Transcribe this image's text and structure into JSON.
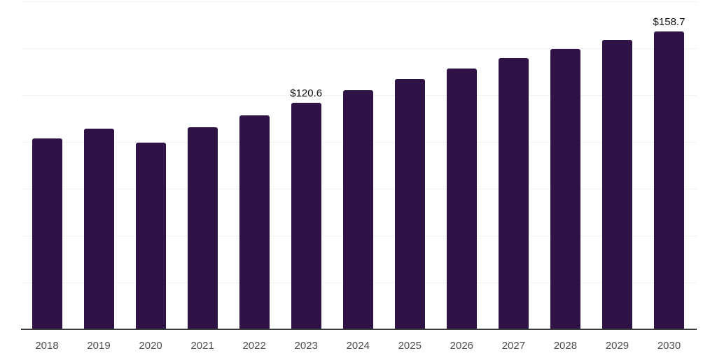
{
  "chart_data": {
    "type": "bar",
    "title": "",
    "xlabel": "",
    "ylabel": "",
    "categories": [
      "2018",
      "2019",
      "2020",
      "2021",
      "2022",
      "2023",
      "2024",
      "2025",
      "2026",
      "2027",
      "2028",
      "2029",
      "2030"
    ],
    "values": [
      101.5,
      106.9,
      99.3,
      107.5,
      114.0,
      120.6,
      127.4,
      133.4,
      138.9,
      144.6,
      149.3,
      154.2,
      158.7
    ],
    "data_labels": [
      "",
      "",
      "",
      "",
      "",
      "$120.6",
      "",
      "",
      "",
      "",
      "",
      "",
      "$158.7"
    ],
    "ylim": [
      0,
      175
    ],
    "gridline_interval": 25,
    "grid": "horizontal",
    "legend": "none",
    "y_axis_labels_visible": false,
    "colors": {
      "bar": "#2f1347",
      "axis_line": "#3c3c3c",
      "gridline": "#f2f2f4",
      "tick_label": "#4d4d4d",
      "data_label": "#111111",
      "background": "#ffffff"
    }
  }
}
